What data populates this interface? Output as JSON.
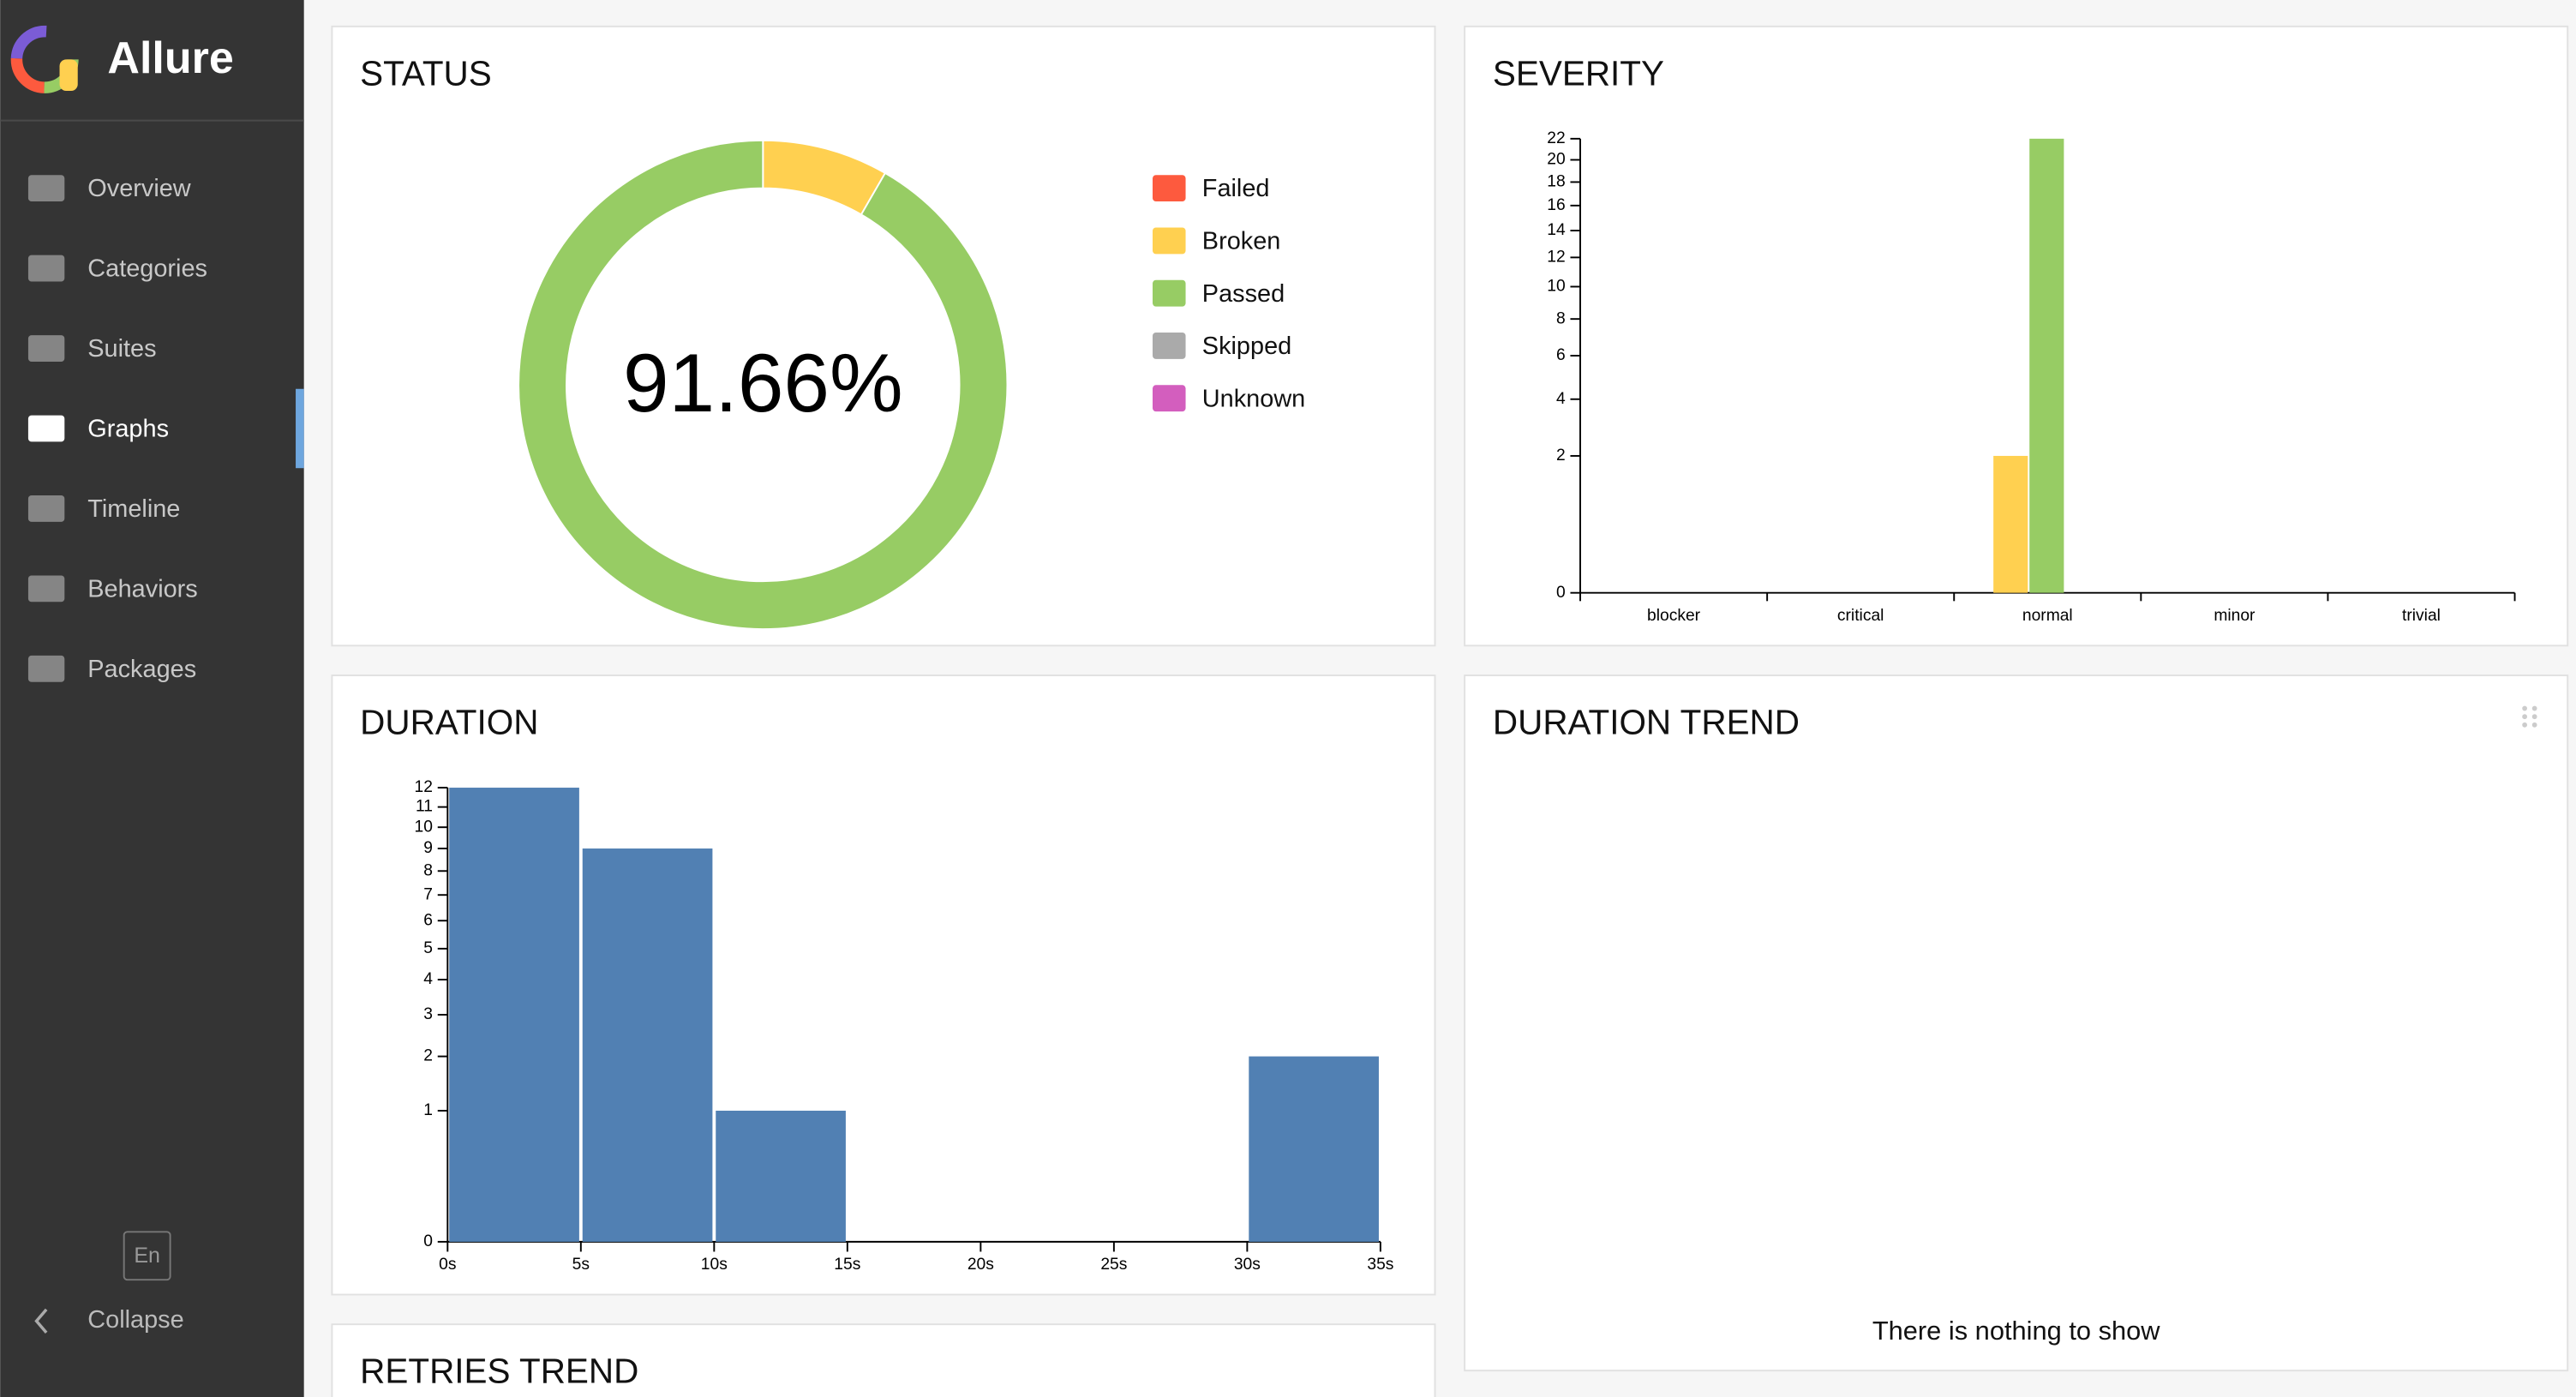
{
  "sidebar": {
    "brand": "Allure",
    "nav": [
      "Overview",
      "Categories",
      "Suites",
      "Graphs",
      "Timeline",
      "Behaviors",
      "Packages"
    ],
    "active": 3,
    "language": "En",
    "collapse": "Collapse"
  },
  "widgets": [
    {
      "title": "STATUS",
      "chart_data": {
        "type": "pie",
        "center_label": "91.66%",
        "categories": [
          "Failed",
          "Broken",
          "Passed",
          "Skipped",
          "Unknown"
        ],
        "values": [
          0,
          2,
          22,
          0,
          0
        ],
        "colors": [
          "#fd5a3e",
          "#ffd050",
          "#97cc64",
          "#aaaaaa",
          "#d35ebe"
        ]
      }
    },
    {
      "title": "SEVERITY",
      "chart_data": {
        "type": "bar",
        "categories": [
          "blocker",
          "critical",
          "normal",
          "minor",
          "trivial"
        ],
        "series": [
          {
            "color": "#fd5a3e",
            "values": [
              0,
              0,
              0,
              0,
              0
            ]
          },
          {
            "color": "#ffd050",
            "values": [
              0,
              0,
              2,
              0,
              0
            ]
          },
          {
            "color": "#97cc64",
            "values": [
              0,
              0,
              22,
              0,
              0
            ]
          },
          {
            "color": "#aaaaaa",
            "values": [
              0,
              0,
              0,
              0,
              0
            ]
          },
          {
            "color": "#d35ebe",
            "values": [
              0,
              0,
              0,
              0,
              0
            ]
          }
        ],
        "yscale": "sqrt",
        "ylim": [
          0,
          22
        ],
        "yticks": [
          0,
          2,
          4,
          6,
          8,
          10,
          12,
          14,
          16,
          18,
          20,
          22
        ]
      }
    },
    {
      "title": "DURATION",
      "chart_data": {
        "type": "histogram",
        "bins": [
          0,
          5,
          10,
          15,
          20,
          25,
          30,
          35
        ],
        "values": [
          12,
          9,
          1,
          0,
          0,
          0,
          2
        ],
        "color": "#5180b3",
        "xlim": [
          0,
          35
        ],
        "xticks": [
          {
            "value": 0,
            "label": "0s"
          },
          {
            "value": 5,
            "label": "5s"
          },
          {
            "value": 10,
            "label": "10s"
          },
          {
            "value": 15,
            "label": "15s"
          },
          {
            "value": 20,
            "label": "20s"
          },
          {
            "value": 25,
            "label": "25s"
          },
          {
            "value": 30,
            "label": "30s"
          },
          {
            "value": 35,
            "label": "35s"
          }
        ],
        "yscale": "sqrt",
        "ylim": [
          0,
          12
        ],
        "yticks": [
          0,
          1,
          2,
          3,
          4,
          5,
          6,
          7,
          8,
          9,
          10,
          11,
          12
        ]
      }
    },
    {
      "title": "DURATION TREND",
      "message": "There is nothing to show"
    },
    {
      "title": "RETRIES TREND"
    }
  ]
}
